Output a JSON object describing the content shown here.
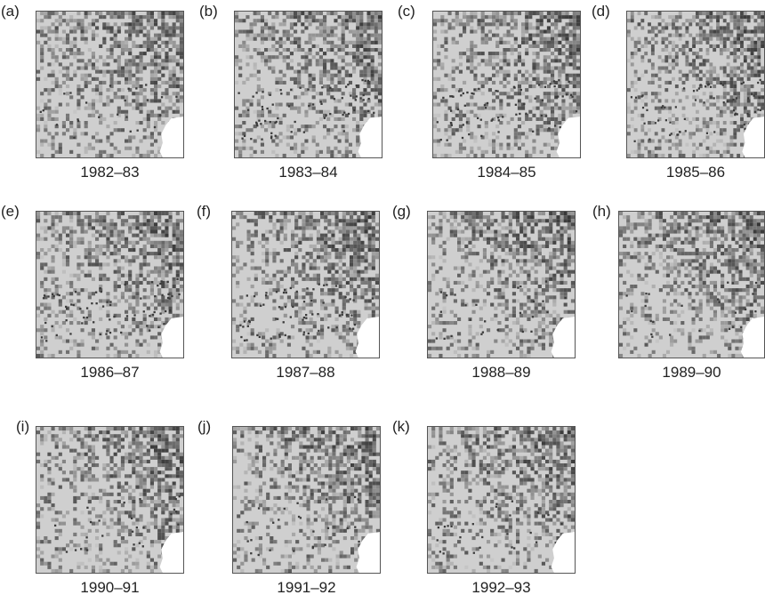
{
  "panels": [
    {
      "letter": "(a)",
      "year": "1982–83",
      "dots": "few"
    },
    {
      "letter": "(b)",
      "year": "1983–84",
      "dots": "many"
    },
    {
      "letter": "(c)",
      "year": "1984–85",
      "dots": "many"
    },
    {
      "letter": "(d)",
      "year": "1985–86",
      "dots": "many"
    },
    {
      "letter": "(e)",
      "year": "1986–87",
      "dots": "many"
    },
    {
      "letter": "(f)",
      "year": "1987–88",
      "dots": "many"
    },
    {
      "letter": "(g)",
      "year": "1988–89",
      "dots": "few"
    },
    {
      "letter": "(h)",
      "year": "1989–90",
      "dots": "few"
    },
    {
      "letter": "(i)",
      "year": "1990–91",
      "dots": "few"
    },
    {
      "letter": "(j)",
      "year": "1991–92",
      "dots": "few"
    },
    {
      "letter": "(k)",
      "year": "1992–93",
      "dots": "few"
    }
  ],
  "colors": {
    "background_light": "#cfcfcf",
    "texture_dark": "#3a3a3a",
    "white_patch": "#ffffff",
    "frame": "#555555"
  }
}
